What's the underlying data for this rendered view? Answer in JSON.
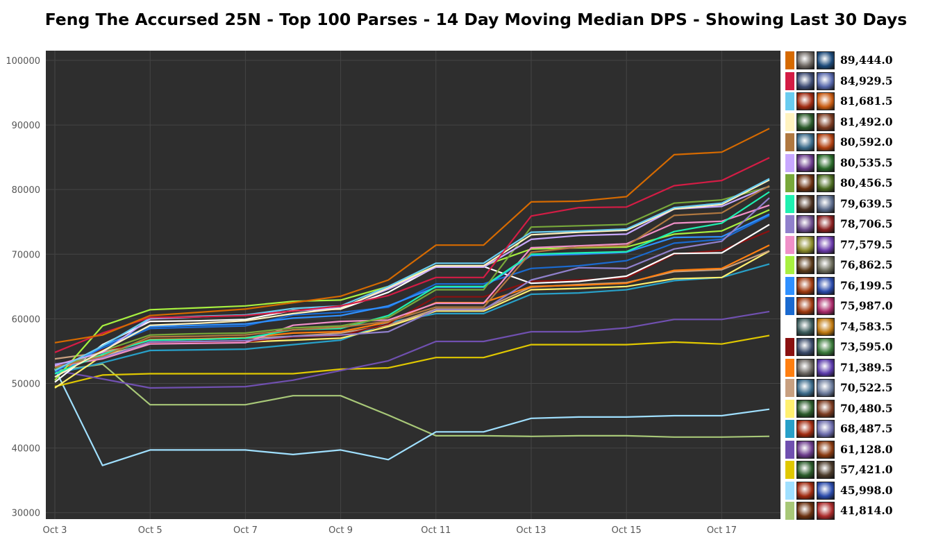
{
  "title": "Feng The Accursed 25N - Top 100 Parses - 14 Day Moving Median DPS - Showing Last 30 Days",
  "chart_data": {
    "type": "line",
    "title": "Feng The Accursed 25N - Top 100 Parses - 14 Day Moving Median DPS - Showing Last 30 Days",
    "xlabel": "",
    "ylabel": "",
    "x": [
      "Oct 3",
      "Oct 4",
      "Oct 5",
      "Oct 6",
      "Oct 7",
      "Oct 8",
      "Oct 9",
      "Oct 10",
      "Oct 11",
      "Oct 12",
      "Oct 13",
      "Oct 14",
      "Oct 15",
      "Oct 16",
      "Oct 17",
      "Oct 18"
    ],
    "x_tick_labels": [
      "Oct 3",
      "Oct 5",
      "Oct 7",
      "Oct 9",
      "Oct 11",
      "Oct 13",
      "Oct 15",
      "Oct 17"
    ],
    "y_ticks": [
      30000,
      40000,
      50000,
      60000,
      70000,
      80000,
      90000,
      100000
    ],
    "y_tick_labels": [
      "30000",
      "40000",
      "50000",
      "60000",
      "70000",
      "80000",
      "90000",
      "100000"
    ],
    "ylim": [
      29000,
      101500
    ],
    "grid": true,
    "legend_position": "right",
    "background": "#2e2e2e",
    "series": [
      {
        "color": "#d66a00",
        "label": "89,444.0",
        "icons": [
          "#6b6560",
          "#1c4a7a"
        ],
        "values": [
          56300,
          57500,
          60500,
          61000,
          61500,
          62500,
          63500,
          66000,
          71400,
          71400,
          78100,
          78200,
          78900,
          85400,
          85800,
          89444
        ]
      },
      {
        "color": "#d41c45",
        "label": "84,929.5",
        "icons": [
          "#3d4b73",
          "#5566aa"
        ],
        "values": [
          54800,
          57800,
          60200,
          60300,
          60500,
          61200,
          62000,
          63600,
          66400,
          66400,
          75900,
          77200,
          77300,
          80600,
          81400,
          84929.5
        ]
      },
      {
        "color": "#69ccf0",
        "label": "81,681.5",
        "icons": [
          "#a02a10",
          "#c85a10"
        ],
        "values": [
          52000,
          55800,
          60100,
          60400,
          60600,
          61600,
          62000,
          65000,
          68600,
          68600,
          73400,
          73600,
          73900,
          77200,
          77900,
          81681.5
        ]
      },
      {
        "color": "#fff3c0",
        "label": "81,492.0",
        "icons": [
          "#2a5a2a",
          "#7a3a20"
        ],
        "values": [
          51000,
          55000,
          59000,
          59300,
          59700,
          60800,
          61600,
          64800,
          68200,
          68200,
          73000,
          73400,
          73700,
          77000,
          77700,
          81492
        ]
      },
      {
        "color": "#b07840",
        "label": "80,592.0",
        "icons": [
          "#3a6a8a",
          "#b04010"
        ],
        "values": [
          52500,
          54200,
          57200,
          57300,
          57500,
          58300,
          58700,
          59600,
          61800,
          61800,
          70300,
          71100,
          71300,
          76000,
          76400,
          80592
        ]
      },
      {
        "color": "#c8a8ff",
        "label": "80,535.5",
        "icons": [
          "#6a3a8a",
          "#2a6a2a"
        ],
        "values": [
          52800,
          54800,
          60000,
          60300,
          60600,
          61200,
          61700,
          64600,
          68000,
          68000,
          72300,
          72900,
          73100,
          77000,
          77400,
          80535.5
        ]
      },
      {
        "color": "#78a83a",
        "label": "80,456.5",
        "icons": [
          "#6a3010",
          "#4a6a20"
        ],
        "values": [
          52200,
          55000,
          57500,
          57700,
          57800,
          58600,
          58900,
          60200,
          64500,
          64500,
          74200,
          74400,
          74600,
          77900,
          78400,
          80456.5
        ]
      },
      {
        "color": "#1ff0b0",
        "label": "79,639.5",
        "icons": [
          "#4a3020",
          "#5a6a8a"
        ],
        "values": [
          51500,
          54500,
          56700,
          56800,
          57000,
          58300,
          58500,
          60500,
          65000,
          65000,
          70000,
          70200,
          70400,
          73500,
          74800,
          79639.5
        ]
      },
      {
        "color": "#9080cc",
        "label": "78,706.5",
        "icons": [
          "#6a4a8a",
          "#8a2020"
        ],
        "values": [
          53000,
          54000,
          56400,
          56500,
          56600,
          57300,
          57500,
          58000,
          61400,
          61400,
          66000,
          67900,
          67800,
          70800,
          72000,
          78706.5
        ]
      },
      {
        "color": "#f090c8",
        "label": "77,579.5",
        "icons": [
          "#8a8a2a",
          "#6a3aaa"
        ],
        "values": [
          52600,
          53800,
          56100,
          56200,
          56300,
          59000,
          59600,
          59800,
          62400,
          62400,
          71000,
          71300,
          71600,
          74800,
          75100,
          77579.5
        ]
      },
      {
        "color": "#a8f040",
        "label": "76,862.5",
        "icons": [
          "#5a3a1a",
          "#6a6a5a"
        ],
        "values": [
          50500,
          58900,
          61400,
          61700,
          62000,
          62700,
          62900,
          65000,
          68200,
          68200,
          70800,
          71000,
          71100,
          73100,
          73600,
          76862.5
        ]
      },
      {
        "color": "#2f90ff",
        "label": "76,199.5",
        "icons": [
          "#a03a10",
          "#2a4aaa"
        ],
        "values": [
          51000,
          55800,
          58800,
          59000,
          59200,
          60100,
          60500,
          62000,
          64900,
          64900,
          69800,
          70000,
          70300,
          72600,
          72700,
          76199.5
        ]
      },
      {
        "color": "#1a6ad0",
        "label": "75,987.0",
        "icons": [
          "#a03a10",
          "#aa2a6a"
        ],
        "values": [
          51800,
          55500,
          58500,
          58700,
          58900,
          60600,
          61000,
          61800,
          65400,
          65400,
          67800,
          68200,
          69000,
          71700,
          72300,
          75987
        ]
      },
      {
        "color": "#ffffff",
        "label": "74,583.5",
        "icons": [
          "#3a5a5a",
          "#c07a10"
        ],
        "values": [
          50200,
          56000,
          59600,
          59700,
          59900,
          61300,
          61500,
          64100,
          68100,
          68100,
          65500,
          65800,
          66600,
          70100,
          70200,
          74583.5
        ]
      },
      {
        "color": "#8a1010",
        "label": "73,595.0",
        "icons": [
          "#3a4a6a",
          "#3a7a3a"
        ],
        "values": [
          52700,
          55200,
          56300,
          56300,
          56400,
          57200,
          57400,
          59200,
          63400,
          63400,
          65800,
          66000,
          66300,
          70000,
          70600,
          73595
        ]
      },
      {
        "color": "#ff7f10",
        "label": "71,389.5",
        "icons": [
          "#6a6560",
          "#5a3aaa"
        ],
        "values": [
          52000,
          54500,
          56800,
          56900,
          57100,
          57800,
          58000,
          59500,
          62500,
          62500,
          65000,
          65200,
          65500,
          67500,
          67800,
          71389.5
        ]
      },
      {
        "color": "#c8a080",
        "label": "70,522.5",
        "icons": [
          "#3a6a8a",
          "#6a7a9a"
        ],
        "values": [
          53800,
          54800,
          56700,
          56800,
          57000,
          57300,
          57800,
          59000,
          61500,
          61500,
          64900,
          65300,
          65600,
          67300,
          67600,
          70522.5
        ]
      },
      {
        "color": "#fff070",
        "label": "70,480.5",
        "icons": [
          "#2a5a2a",
          "#7a3a20"
        ],
        "values": [
          49300,
          54300,
          56200,
          56300,
          56400,
          56700,
          57000,
          58800,
          61200,
          61200,
          64500,
          64700,
          65000,
          66200,
          66400,
          70480.5
        ]
      },
      {
        "color": "#28a0c8",
        "label": "68,487.5",
        "icons": [
          "#a02a10",
          "#6a6aaa"
        ],
        "values": [
          51500,
          53200,
          55100,
          55200,
          55300,
          56000,
          56700,
          59400,
          60800,
          60800,
          63800,
          64000,
          64500,
          65900,
          66400,
          68487.5
        ]
      },
      {
        "color": "#7050b0",
        "label": "61,128.0",
        "icons": [
          "#6a3a8a",
          "#8a3a10"
        ],
        "values": [
          52000,
          50700,
          49300,
          49400,
          49500,
          50500,
          52000,
          53500,
          56500,
          56500,
          58000,
          58000,
          58600,
          59900,
          59900,
          61128
        ]
      },
      {
        "color": "#e0c800",
        "label": "57,421.0",
        "icons": [
          "#2a5a2a",
          "#4a3a2a"
        ],
        "values": [
          49500,
          51300,
          51500,
          51500,
          51500,
          51500,
          52200,
          52400,
          54000,
          54000,
          56000,
          56000,
          56000,
          56400,
          56100,
          57421
        ]
      },
      {
        "color": "#a0e0ff",
        "label": "45,998.0",
        "icons": [
          "#a02a10",
          "#2a4aaa"
        ],
        "values": [
          52300,
          37300,
          39700,
          39700,
          39700,
          39000,
          39700,
          38200,
          42500,
          42500,
          44600,
          44800,
          44800,
          45000,
          45000,
          45998
        ]
      },
      {
        "color": "#a8c878",
        "label": "41,814.0",
        "icons": [
          "#6a3010",
          "#aa2a2a"
        ],
        "values": [
          51900,
          53000,
          46700,
          46700,
          46700,
          48100,
          48100,
          45100,
          41900,
          41900,
          41800,
          41900,
          41900,
          41700,
          41700,
          41814
        ]
      }
    ]
  }
}
